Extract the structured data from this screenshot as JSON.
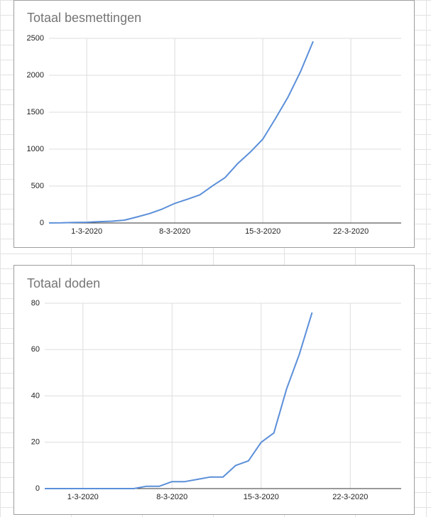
{
  "chart_data": [
    {
      "type": "line",
      "title": "Totaal besmettingen",
      "x": [
        "27-2-2020",
        "28-2-2020",
        "29-2-2020",
        "1-3-2020",
        "2-3-2020",
        "3-3-2020",
        "4-3-2020",
        "5-3-2020",
        "6-3-2020",
        "7-3-2020",
        "8-3-2020",
        "9-3-2020",
        "10-3-2020",
        "11-3-2020",
        "12-3-2020",
        "13-3-2020",
        "14-3-2020",
        "15-3-2020",
        "16-3-2020",
        "17-3-2020",
        "18-3-2020",
        "19-3-2020"
      ],
      "series": [
        {
          "color": "#5b8fd9",
          "values": [
            1,
            2,
            7,
            10,
            18,
            24,
            38,
            82,
            128,
            188,
            265,
            321,
            382,
            503,
            614,
            804,
            959,
            1135,
            1413,
            1705,
            2051,
            2460
          ]
        }
      ],
      "xlim": [
        "27-2-2020",
        "26-3-2020"
      ],
      "xticks": [
        "1-3-2020",
        "8-3-2020",
        "15-3-2020",
        "22-3-2020"
      ],
      "ylim": [
        0,
        2500
      ],
      "yticks": [
        0,
        500,
        1000,
        1500,
        2000,
        2500
      ],
      "grid": true
    },
    {
      "type": "line",
      "title": "Totaal doden",
      "x": [
        "27-2-2020",
        "28-2-2020",
        "29-2-2020",
        "1-3-2020",
        "2-3-2020",
        "3-3-2020",
        "4-3-2020",
        "5-3-2020",
        "6-3-2020",
        "7-3-2020",
        "8-3-2020",
        "9-3-2020",
        "10-3-2020",
        "11-3-2020",
        "12-3-2020",
        "13-3-2020",
        "14-3-2020",
        "15-3-2020",
        "16-3-2020",
        "17-3-2020",
        "18-3-2020",
        "19-3-2020"
      ],
      "series": [
        {
          "color": "#5b8fd9",
          "values": [
            0,
            0,
            0,
            0,
            0,
            0,
            0,
            0,
            1,
            1,
            3,
            3,
            4,
            5,
            5,
            10,
            12,
            20,
            24,
            43,
            58,
            76
          ]
        }
      ],
      "xlim": [
        "27-2-2020",
        "26-3-2020"
      ],
      "xticks": [
        "1-3-2020",
        "8-3-2020",
        "15-3-2020",
        "22-3-2020"
      ],
      "ylim": [
        0,
        80
      ],
      "yticks": [
        0,
        20,
        40,
        60,
        80
      ],
      "grid": true
    }
  ]
}
